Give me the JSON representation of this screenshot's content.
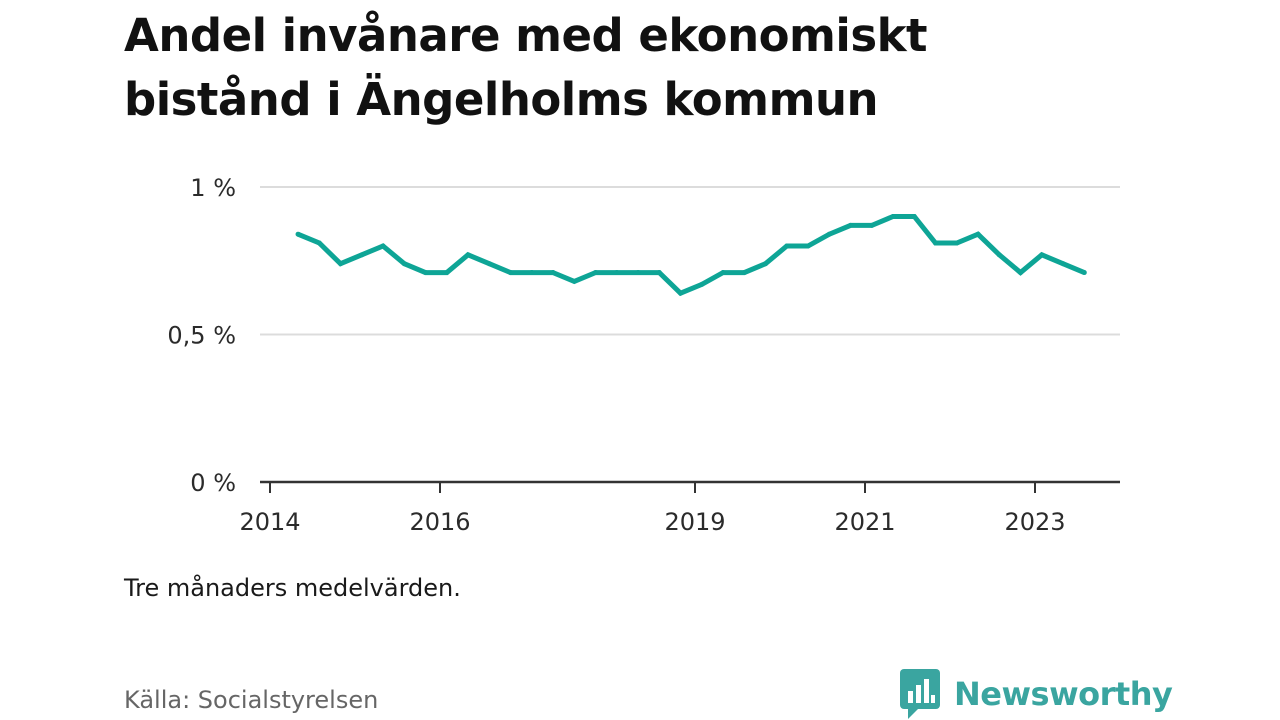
{
  "title": "Andel invånare med ekonomiskt bistånd i Ängelholms kommun",
  "note": "Tre månaders medelvärden.",
  "source": "Källa: Socialstyrelsen",
  "logo": {
    "text": "Newsworthy",
    "icon": "bar-chart-speech-bubble-icon",
    "color": "#3aa5a0"
  },
  "chart_data": {
    "type": "line",
    "title": "Andel invånare med ekonomiskt bistånd i Ängelholms kommun",
    "xlabel": "",
    "ylabel": "",
    "ylim": [
      0,
      1
    ],
    "xlim": [
      2014,
      2024
    ],
    "grid": true,
    "line_color": "#0ea596",
    "y_ticks": [
      {
        "value": 0,
        "label": "0 %"
      },
      {
        "value": 0.5,
        "label": "0,5 %"
      },
      {
        "value": 1,
        "label": "1 %"
      }
    ],
    "x_ticks": [
      {
        "value": 2014,
        "label": "2014"
      },
      {
        "value": 2016,
        "label": "2016"
      },
      {
        "value": 2019,
        "label": "2019"
      },
      {
        "value": 2021,
        "label": "2021"
      },
      {
        "value": 2023,
        "label": "2023"
      }
    ],
    "series": [
      {
        "x": [
          2014.33,
          2014.58,
          2014.83,
          2015.08,
          2015.33,
          2015.58,
          2015.83,
          2016.08,
          2016.33,
          2016.58,
          2016.83,
          2017.08,
          2017.33,
          2017.58,
          2017.83,
          2018.08,
          2018.33,
          2018.58,
          2018.83,
          2019.08,
          2019.33,
          2019.58,
          2019.83,
          2020.08,
          2020.33,
          2020.58,
          2020.83,
          2021.08,
          2021.33,
          2021.58,
          2021.83,
          2022.08,
          2022.33,
          2022.58,
          2022.83,
          2023.08,
          2023.33,
          2023.58
        ],
        "values": [
          0.84,
          0.81,
          0.74,
          0.77,
          0.8,
          0.74,
          0.71,
          0.71,
          0.77,
          0.74,
          0.71,
          0.71,
          0.71,
          0.68,
          0.71,
          0.71,
          0.71,
          0.71,
          0.64,
          0.67,
          0.71,
          0.71,
          0.74,
          0.8,
          0.8,
          0.84,
          0.87,
          0.87,
          0.9,
          0.9,
          0.81,
          0.81,
          0.84,
          0.77,
          0.71,
          0.77,
          0.74,
          0.71
        ]
      }
    ]
  }
}
